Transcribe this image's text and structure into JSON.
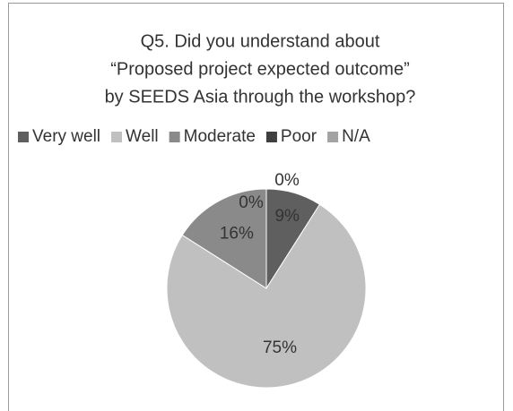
{
  "chart_data": {
    "type": "pie",
    "title": [
      "Q5. Did you understand about",
      "“Proposed project expected outcome”",
      "by SEEDS Asia through the workshop?"
    ],
    "categories": [
      "Very well",
      "Well",
      "Moderate",
      "Poor",
      "N/A"
    ],
    "values": [
      9,
      75,
      16,
      0,
      0
    ],
    "value_labels": [
      "9%",
      "75%",
      "16%",
      "0%",
      "0%"
    ],
    "colors": [
      "#5f5f5f",
      "#c0c0c0",
      "#8a8a8a",
      "#3f3f3f",
      "#a3a3a3"
    ],
    "legend": "top"
  }
}
